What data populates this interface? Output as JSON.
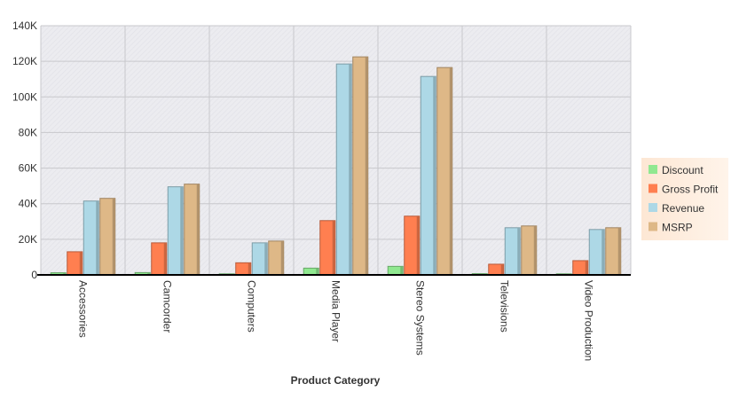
{
  "chart_data": {
    "type": "bar",
    "xlabel": "Product Category",
    "ylabel": "",
    "ylim": [
      0,
      140000
    ],
    "yticks": [
      0,
      20000,
      40000,
      60000,
      80000,
      100000,
      120000,
      140000
    ],
    "ytick_labels": [
      "0",
      "20K",
      "40K",
      "60K",
      "80K",
      "100K",
      "120K",
      "140K"
    ],
    "grid": true,
    "legend_position": "right",
    "categories": [
      "Accessories",
      "Camcorder",
      "Computers",
      "Media Player",
      "Stereo Systems",
      "Televisions",
      "Video Production"
    ],
    "series": [
      {
        "name": "Discount",
        "color": "#90e890",
        "values": [
          1200,
          1300,
          600,
          3800,
          4800,
          700,
          600
        ]
      },
      {
        "name": "Gross Profit",
        "color": "#ff7f50",
        "values": [
          13000,
          18000,
          6800,
          30500,
          33000,
          6000,
          8000
        ]
      },
      {
        "name": "Revenue",
        "color": "#add8e6",
        "values": [
          41500,
          49500,
          18000,
          118500,
          111500,
          26500,
          25500
        ]
      },
      {
        "name": "MSRP",
        "color": "#deb887",
        "values": [
          43000,
          51000,
          19000,
          122500,
          116500,
          27500,
          26500
        ]
      }
    ]
  }
}
